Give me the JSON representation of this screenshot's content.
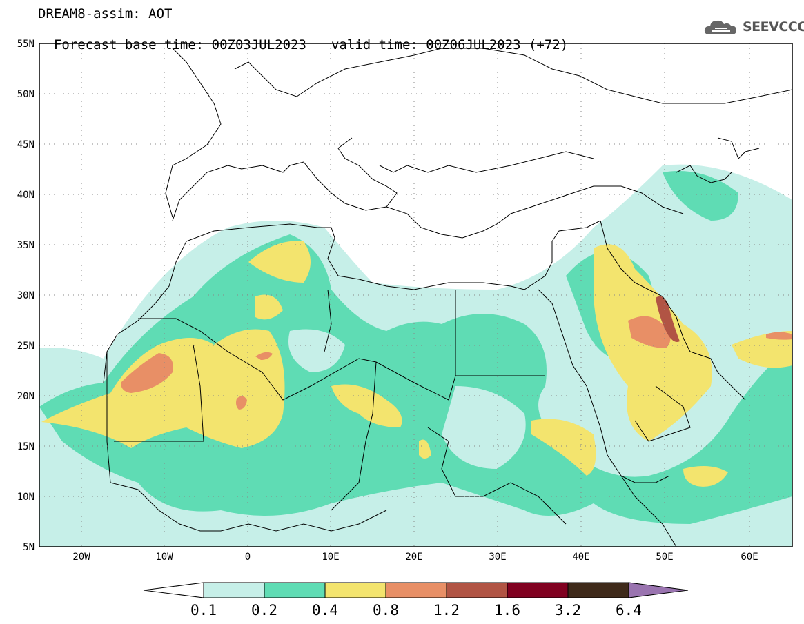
{
  "header": {
    "title": "DREAM8-assim: AOT",
    "base_time": "Forecast base time: 00Z03JUL2023",
    "valid_time": "valid time: 00Z06JUL2023 (+72)"
  },
  "logo": {
    "text": "SEEVCCC",
    "icon": "cloud-icon"
  },
  "map": {
    "lat_labels": [
      "55N",
      "50N",
      "45N",
      "40N",
      "35N",
      "30N",
      "25N",
      "20N",
      "15N",
      "10N",
      "5N"
    ],
    "lon_labels": [
      "20W",
      "10W",
      "0",
      "10E",
      "20E",
      "30E",
      "40E",
      "50E",
      "60E"
    ],
    "lon_range": [
      -25,
      65
    ],
    "lat_range": [
      5,
      55
    ],
    "grid": "dotted"
  },
  "colorbar": {
    "levels": [
      "0.1",
      "0.2",
      "0.4",
      "0.8",
      "1.2",
      "1.6",
      "3.2",
      "6.4"
    ],
    "colors": [
      "#c6efe8",
      "#5fdcb4",
      "#f3e46e",
      "#e88f66",
      "#b15444",
      "#800020",
      "#3f2a1a",
      "#9a74b0"
    ],
    "under_color": "#ffffff"
  }
}
